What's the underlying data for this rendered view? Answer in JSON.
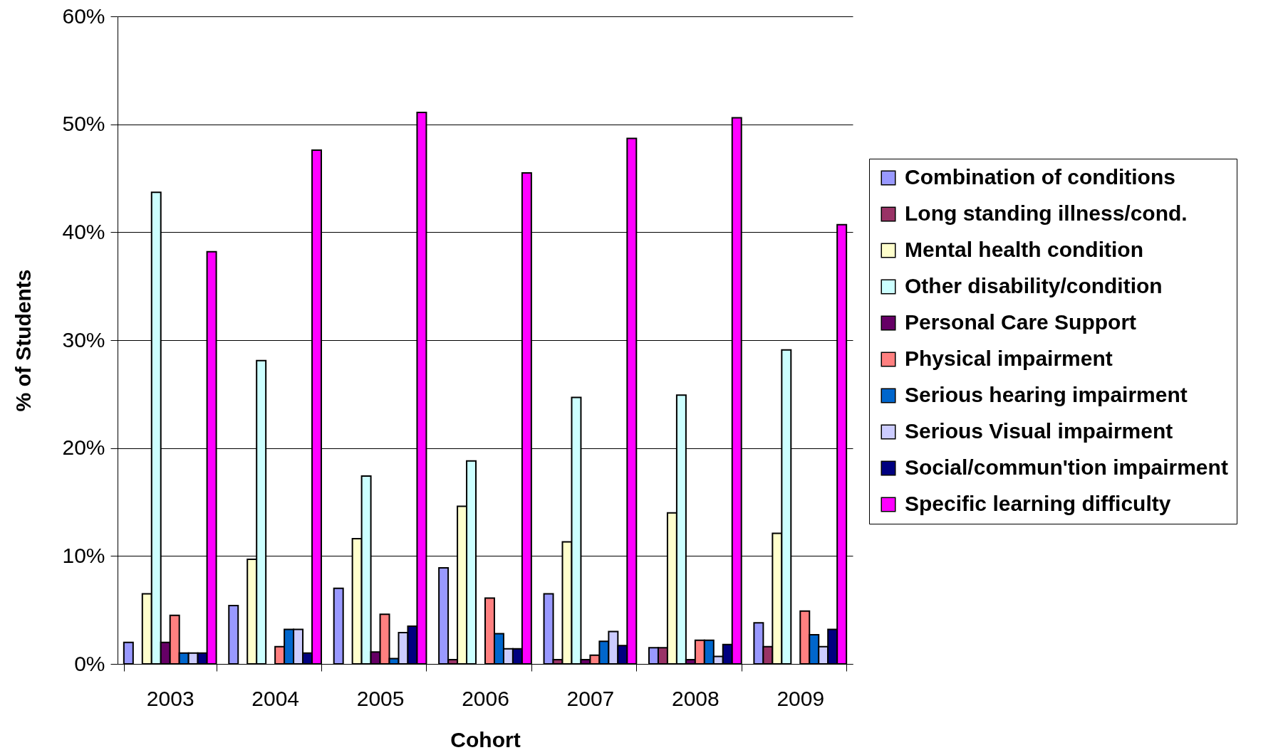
{
  "chart_data": {
    "type": "bar",
    "xlabel": "Cohort",
    "ylabel": "% of Students",
    "categories": [
      "2003",
      "2004",
      "2005",
      "2006",
      "2007",
      "2008",
      "2009"
    ],
    "ylim": [
      0,
      60
    ],
    "yticks": [
      {
        "value": 0,
        "label": "0%"
      },
      {
        "value": 10,
        "label": "10%"
      },
      {
        "value": 20,
        "label": "20%"
      },
      {
        "value": 30,
        "label": "30%"
      },
      {
        "value": 40,
        "label": "40%"
      },
      {
        "value": 50,
        "label": "50%"
      },
      {
        "value": 60,
        "label": "60%"
      }
    ],
    "grid": "y",
    "legend": "right",
    "series": [
      {
        "name": "Combination of conditions",
        "color": "#9999ff",
        "values": [
          2.0,
          5.4,
          7.0,
          8.9,
          6.5,
          1.5,
          3.8
        ]
      },
      {
        "name": "Long standing illness/cond.",
        "color": "#993366",
        "values": [
          null,
          null,
          null,
          0.4,
          0.4,
          1.5,
          1.6
        ]
      },
      {
        "name": "Mental health condition",
        "color": "#ffffcc",
        "values": [
          6.5,
          9.7,
          11.6,
          14.6,
          11.3,
          14.0,
          12.1
        ]
      },
      {
        "name": "Other disability/condition",
        "color": "#ccffff",
        "values": [
          43.7,
          28.1,
          17.4,
          18.8,
          24.7,
          24.9,
          29.1
        ]
      },
      {
        "name": "Personal Care Support",
        "color": "#660066",
        "values": [
          2.0,
          null,
          1.1,
          null,
          0.4,
          0.4,
          null
        ]
      },
      {
        "name": "Physical impairment",
        "color": "#ff8080",
        "values": [
          4.5,
          1.6,
          4.6,
          6.1,
          0.8,
          2.2,
          4.9
        ]
      },
      {
        "name": "Serious hearing impairment",
        "color": "#0066cc",
        "values": [
          1.0,
          3.2,
          0.5,
          2.8,
          2.1,
          2.2,
          2.7
        ]
      },
      {
        "name": "Serious Visual impairment",
        "color": "#ccccff",
        "values": [
          1.0,
          3.2,
          2.9,
          1.4,
          3.0,
          0.7,
          1.6
        ]
      },
      {
        "name": "Social/commun'tion impairment",
        "color": "#000080",
        "values": [
          1.0,
          1.0,
          3.5,
          1.4,
          1.7,
          1.8,
          3.2
        ]
      },
      {
        "name": "Specific learning difficulty",
        "color": "#ff00ff",
        "values": [
          38.2,
          47.6,
          51.1,
          45.5,
          48.7,
          50.6,
          40.7
        ]
      }
    ]
  }
}
